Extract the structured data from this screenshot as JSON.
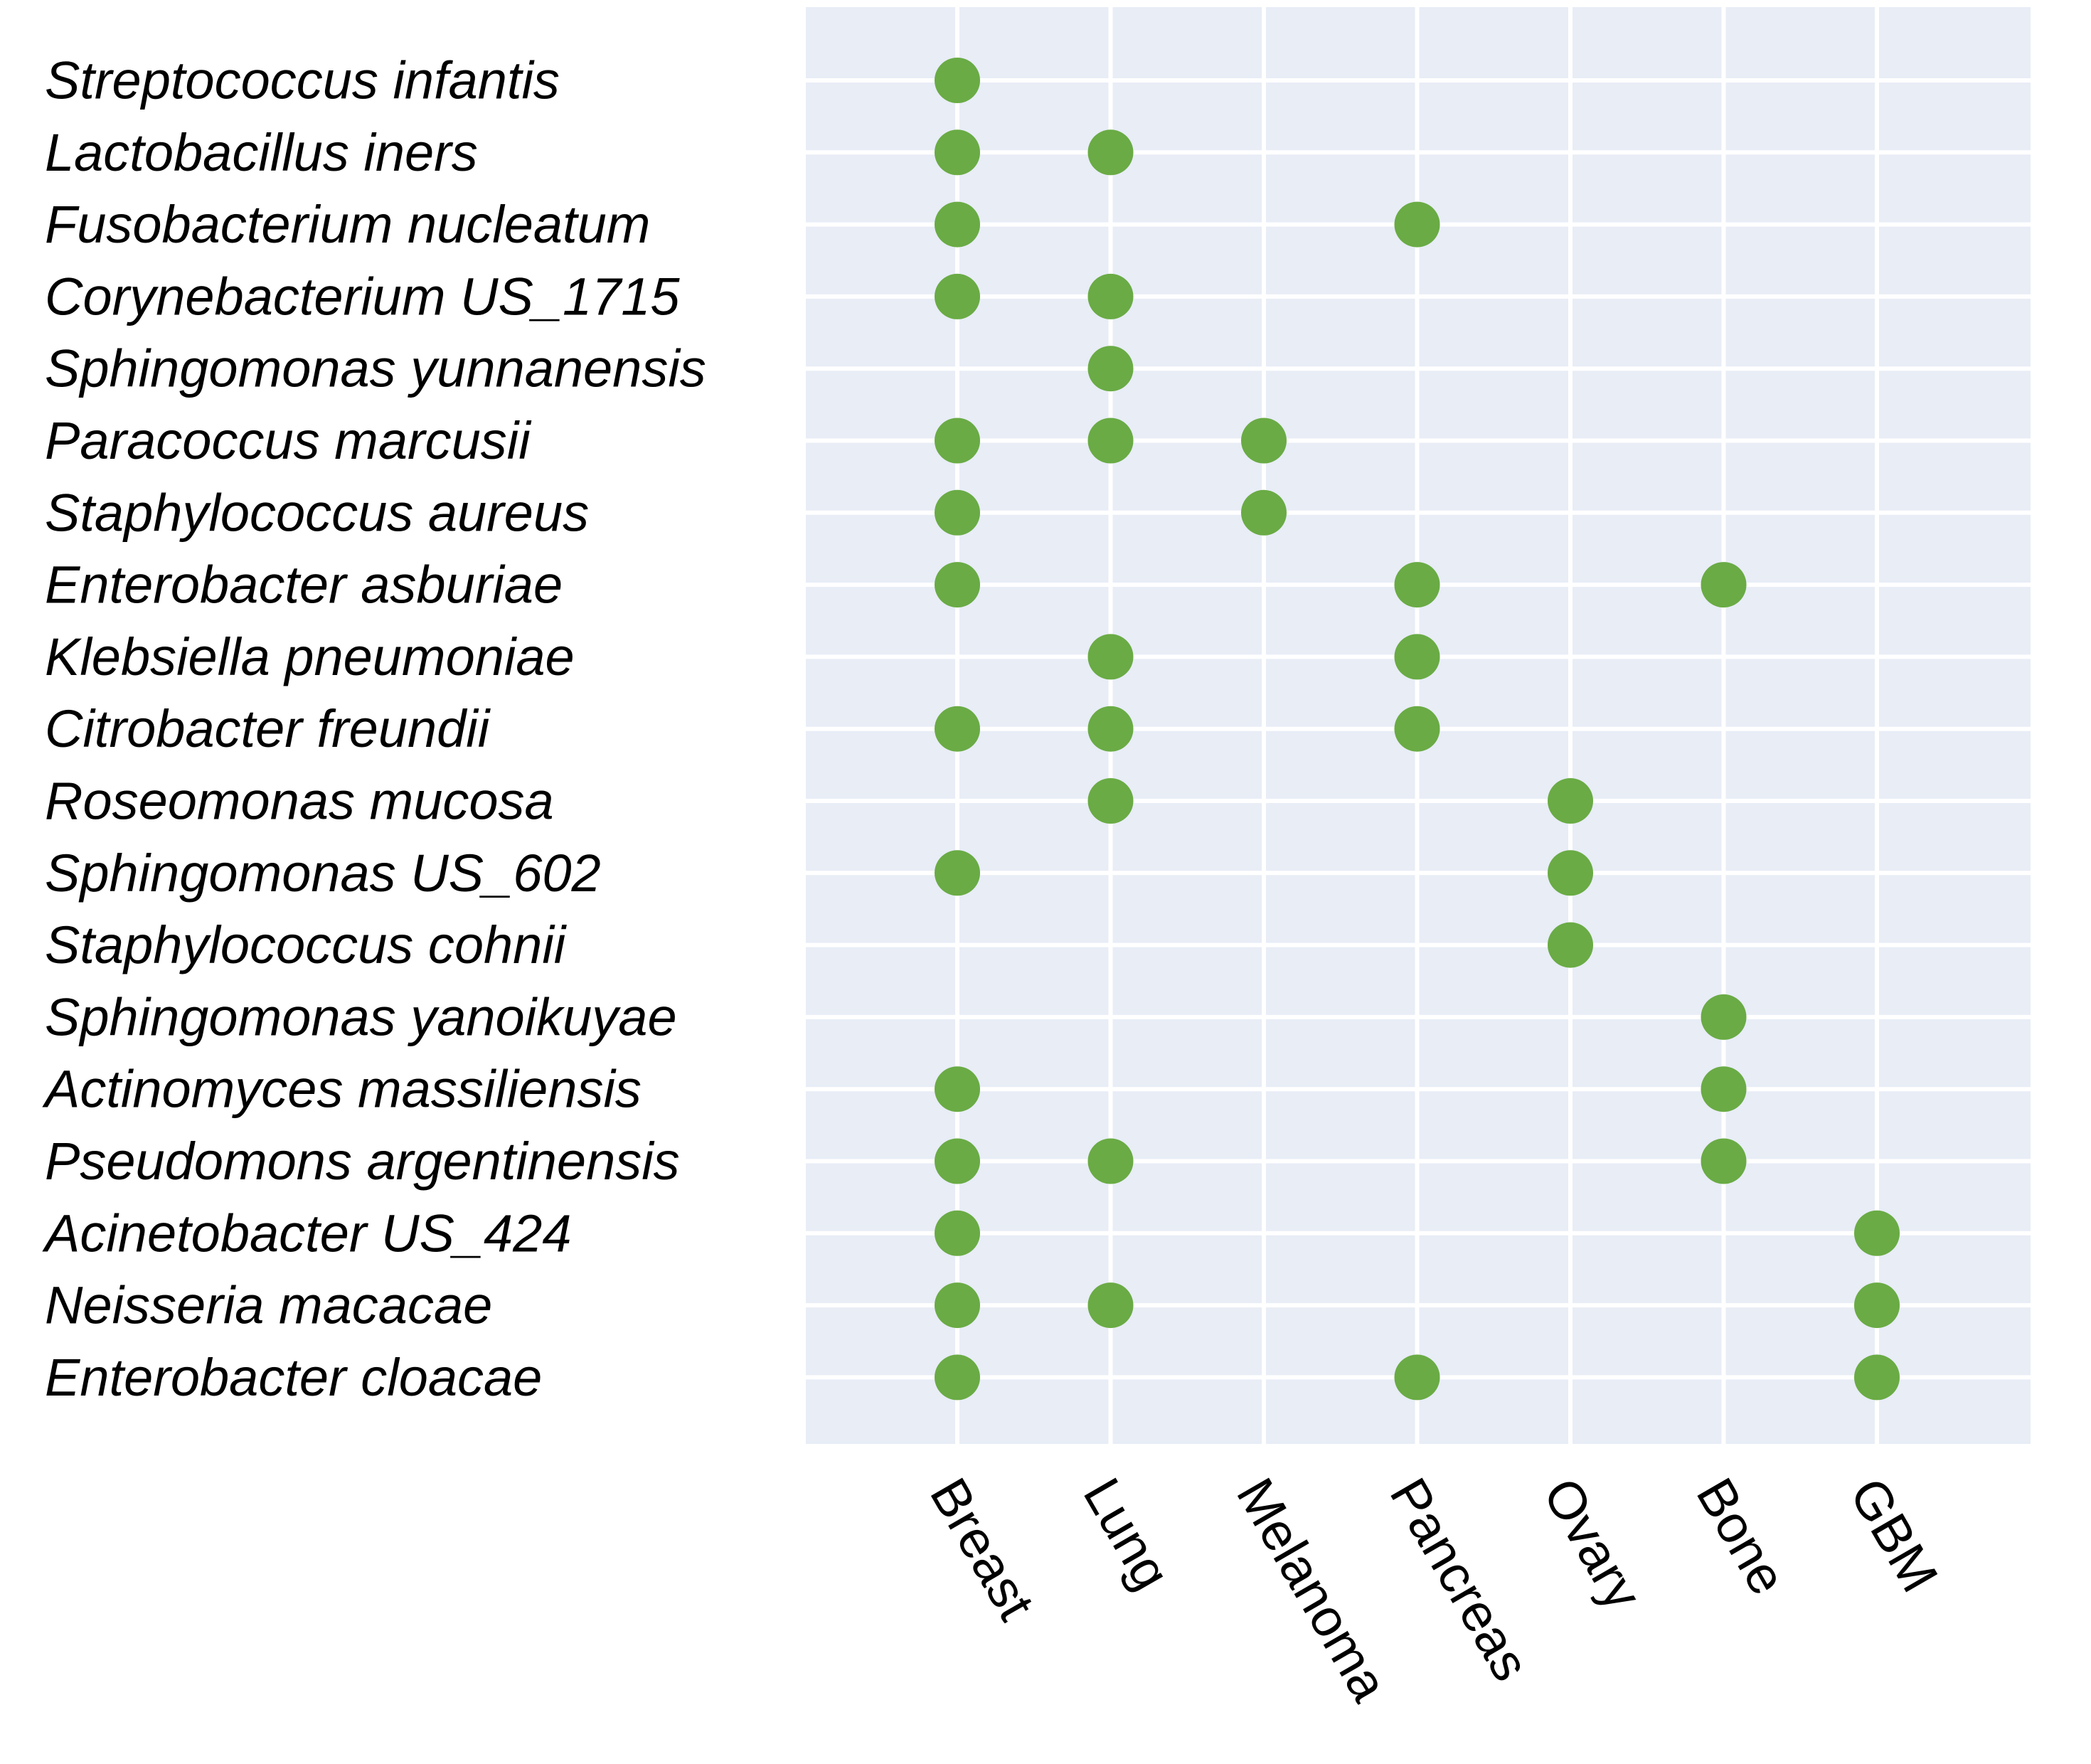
{
  "chart_data": {
    "type": "scatter",
    "title": "",
    "xlabel": "",
    "ylabel": "",
    "grid": true,
    "colors": {
      "panel": "#e8edf6",
      "grid": "#ffffff",
      "point": "#6aab45"
    },
    "x_categories": [
      "Breast",
      "Lung",
      "Melanoma",
      "Pancreas",
      "Ovary",
      "Bone",
      "GBM"
    ],
    "y_categories": [
      "Streptococcus infantis",
      "Lactobacillus iners",
      "Fusobacterium nucleatum",
      "Corynebacterium US_1715",
      "Sphingomonas yunnanensis",
      "Paracoccus marcusii",
      "Staphylococcus aureus",
      "Enterobacter asburiae",
      "Klebsiella pneumoniae",
      "Citrobacter freundii",
      "Roseomonas mucosa",
      "Sphingomonas US_602",
      "Staphylococcus cohnii",
      "Sphingomonas yanoikuyae",
      "Actinomyces massiliensis",
      "Pseudomons argentinensis",
      "Acinetobacter US_424",
      "Neisseria macacae",
      "Enterobacter cloacae"
    ],
    "points": [
      {
        "y": "Streptococcus infantis",
        "x": [
          "Breast"
        ]
      },
      {
        "y": "Lactobacillus iners",
        "x": [
          "Breast",
          "Lung"
        ]
      },
      {
        "y": "Fusobacterium nucleatum",
        "x": [
          "Breast",
          "Pancreas"
        ]
      },
      {
        "y": "Corynebacterium US_1715",
        "x": [
          "Breast",
          "Lung"
        ]
      },
      {
        "y": "Sphingomonas yunnanensis",
        "x": [
          "Lung"
        ]
      },
      {
        "y": "Paracoccus marcusii",
        "x": [
          "Breast",
          "Lung",
          "Melanoma"
        ]
      },
      {
        "y": "Staphylococcus aureus",
        "x": [
          "Breast",
          "Melanoma"
        ]
      },
      {
        "y": "Enterobacter asburiae",
        "x": [
          "Breast",
          "Pancreas",
          "Bone"
        ]
      },
      {
        "y": "Klebsiella pneumoniae",
        "x": [
          "Lung",
          "Pancreas"
        ]
      },
      {
        "y": "Citrobacter freundii",
        "x": [
          "Breast",
          "Lung",
          "Pancreas"
        ]
      },
      {
        "y": "Roseomonas mucosa",
        "x": [
          "Lung",
          "Ovary"
        ]
      },
      {
        "y": "Sphingomonas US_602",
        "x": [
          "Breast",
          "Ovary"
        ]
      },
      {
        "y": "Staphylococcus cohnii",
        "x": [
          "Ovary"
        ]
      },
      {
        "y": "Sphingomonas yanoikuyae",
        "x": [
          "Bone"
        ]
      },
      {
        "y": "Actinomyces massiliensis",
        "x": [
          "Breast",
          "Bone"
        ]
      },
      {
        "y": "Pseudomons argentinensis",
        "x": [
          "Breast",
          "Lung",
          "Bone"
        ]
      },
      {
        "y": "Acinetobacter US_424",
        "x": [
          "Breast",
          "GBM"
        ]
      },
      {
        "y": "Neisseria macacae",
        "x": [
          "Breast",
          "Lung",
          "GBM"
        ]
      },
      {
        "y": "Enterobacter cloacae",
        "x": [
          "Breast",
          "Pancreas",
          "GBM"
        ]
      }
    ]
  }
}
